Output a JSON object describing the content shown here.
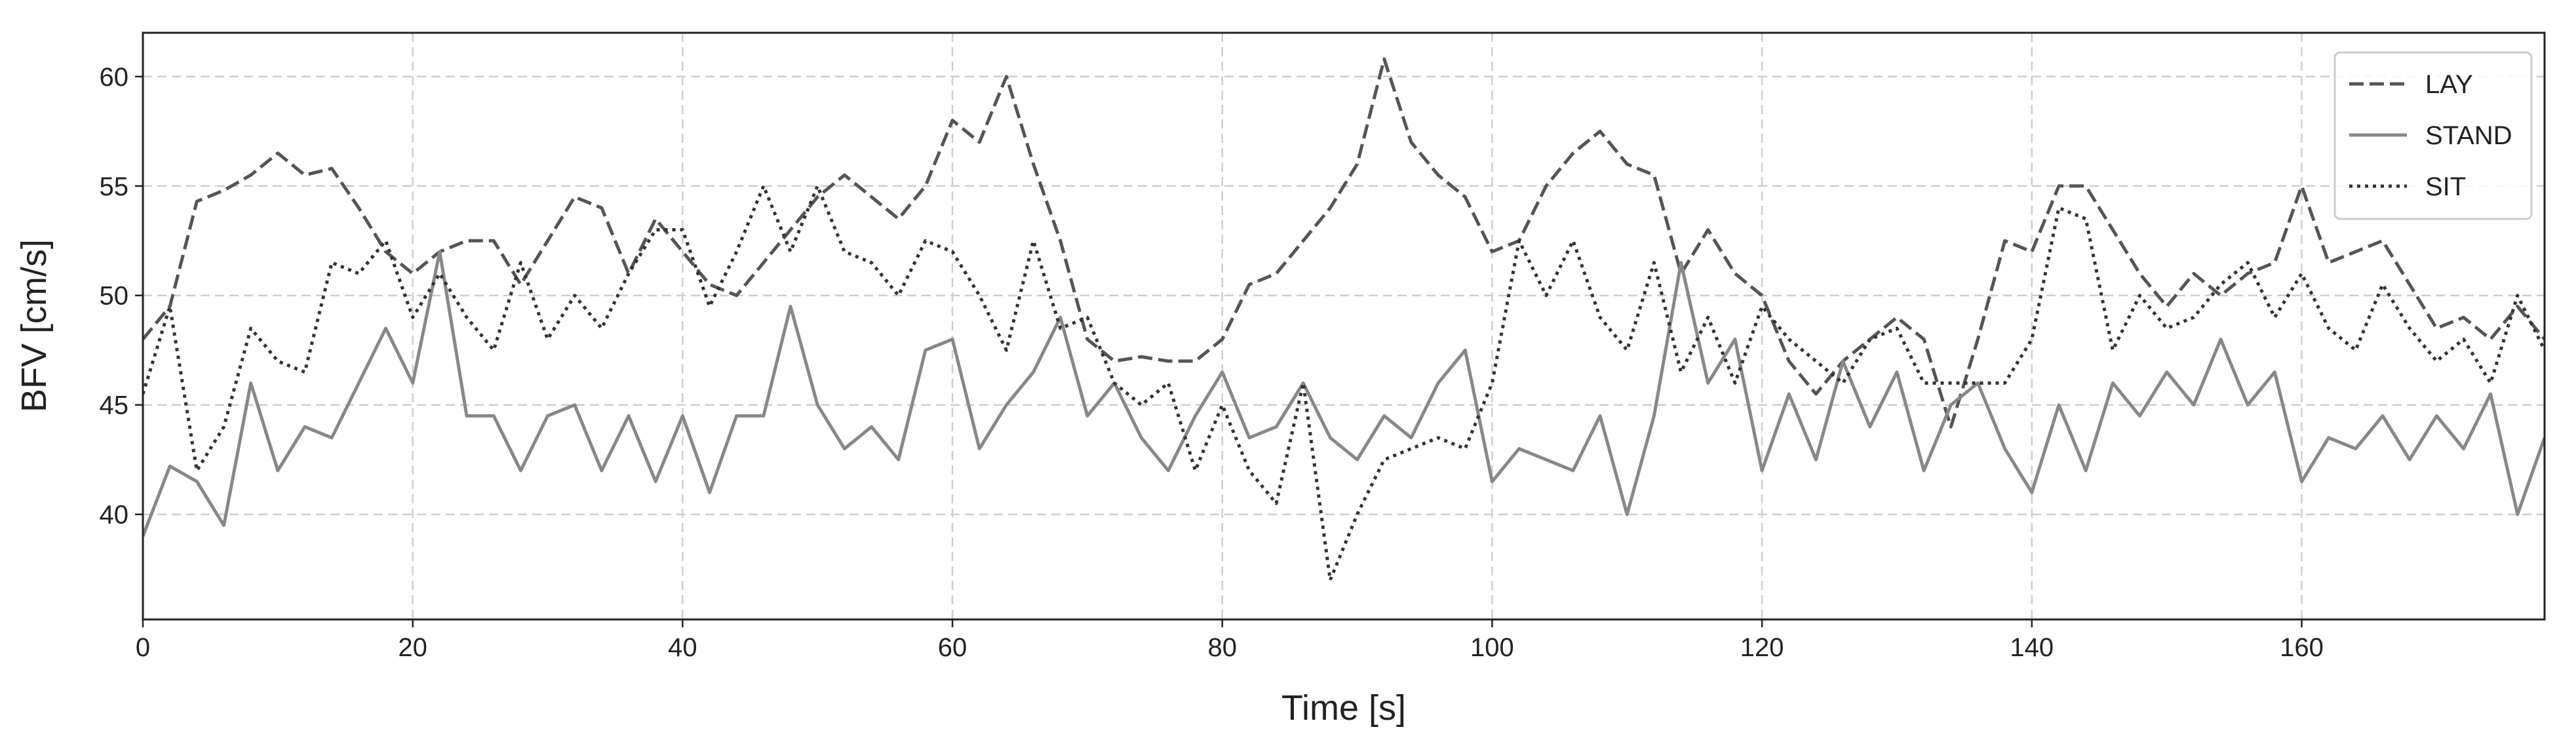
{
  "chart_data": {
    "type": "line",
    "x_label": "Time [s]",
    "y_label": "BFV [cm/s]",
    "x": [
      0,
      2,
      4,
      6,
      8,
      10,
      12,
      14,
      16,
      18,
      20,
      22,
      24,
      26,
      28,
      30,
      32,
      34,
      36,
      38,
      40,
      42,
      44,
      46,
      48,
      50,
      52,
      54,
      56,
      58,
      60,
      62,
      64,
      66,
      68,
      70,
      72,
      74,
      76,
      78,
      80,
      82,
      84,
      86,
      88,
      90,
      92,
      94,
      96,
      98,
      100,
      102,
      104,
      106,
      108,
      110,
      112,
      114,
      116,
      118,
      120,
      122,
      124,
      126,
      128,
      130,
      132,
      134,
      136,
      138,
      140,
      142,
      144,
      146,
      148,
      150,
      152,
      154,
      156,
      158,
      160,
      162,
      164,
      166,
      168,
      170,
      172,
      174,
      176,
      178
    ],
    "series": [
      {
        "name": "LAY",
        "color": "#555555",
        "linestyle": "dashed",
        "values": [
          48,
          49.5,
          54.3,
          54.8,
          55.5,
          56.5,
          55.5,
          55.8,
          54,
          52,
          51,
          52,
          52.5,
          52.5,
          50.5,
          52.5,
          54.5,
          54,
          51,
          53.5,
          52,
          50.5,
          50,
          51.5,
          53,
          54.5,
          55.5,
          54.5,
          53.5,
          55,
          58,
          57,
          60,
          56,
          52.5,
          48,
          47,
          47.2,
          47,
          47,
          48,
          50.5,
          51,
          52.5,
          54,
          56,
          60.8,
          57,
          55.5,
          54.5,
          52,
          52.5,
          55,
          56.5,
          57.5,
          56,
          55.5,
          51,
          53,
          51,
          50,
          47,
          45.5,
          47,
          48,
          49,
          48,
          44,
          48,
          52.5,
          52,
          55,
          55,
          53,
          51,
          49.5,
          51,
          50,
          51,
          51.5,
          55,
          51.5,
          52,
          52.5,
          50.5,
          48.5,
          49,
          48,
          49.5,
          48
        ]
      },
      {
        "name": "STAND",
        "color": "#888888",
        "linestyle": "solid",
        "values": [
          39,
          42.2,
          41.5,
          39.5,
          46,
          42,
          44,
          43.5,
          46,
          48.5,
          46,
          52,
          44.5,
          44.5,
          42,
          44.5,
          45,
          42,
          44.5,
          41.5,
          44.5,
          41,
          44.5,
          44.5,
          49.5,
          45,
          43,
          44,
          42.5,
          47.5,
          48,
          43,
          45,
          46.5,
          49,
          44.5,
          46,
          43.5,
          42,
          44.5,
          46.5,
          43.5,
          44,
          46,
          43.5,
          42.5,
          44.5,
          43.5,
          46,
          47.5,
          41.5,
          43,
          42.5,
          42,
          44.5,
          40,
          44.5,
          51.5,
          46,
          48,
          42,
          45.5,
          42.5,
          47,
          44,
          46.5,
          42,
          45,
          46,
          43,
          41,
          45,
          42,
          46,
          44.5,
          46.5,
          45,
          48,
          45,
          46.5,
          41.5,
          43.5,
          43,
          44.5,
          42.5,
          44.5,
          43,
          45.5,
          40,
          43.5
        ]
      },
      {
        "name": "SIT",
        "color": "#333333",
        "linestyle": "dotted",
        "values": [
          45.5,
          49.5,
          42,
          44,
          48.5,
          47,
          46.5,
          51.5,
          51,
          52.5,
          49,
          51,
          49,
          47.5,
          51.5,
          48,
          50,
          48.5,
          51,
          53,
          53,
          49.5,
          52,
          55,
          52,
          55,
          52,
          51.5,
          50,
          52.5,
          52,
          50,
          47.5,
          52.5,
          48.5,
          49,
          46,
          45,
          46,
          42,
          45,
          42,
          40.5,
          46,
          37,
          40,
          42.5,
          43,
          43.5,
          43,
          46,
          52.5,
          50,
          52.5,
          49,
          47.5,
          51.5,
          46.5,
          49,
          46,
          49.5,
          48,
          47,
          46,
          48,
          48.5,
          46,
          46,
          46,
          46,
          48,
          54,
          53.5,
          47.5,
          50,
          48.5,
          49,
          50.5,
          51.5,
          49,
          51,
          48.5,
          47.5,
          50.5,
          48.5,
          47,
          48,
          46,
          50,
          47.5
        ]
      }
    ],
    "xlim": [
      0,
      178
    ],
    "ylim": [
      35.2,
      62
    ],
    "xticks": [
      0,
      20,
      40,
      60,
      80,
      100,
      120,
      140,
      160
    ],
    "yticks": [
      40,
      45,
      50,
      55,
      60
    ],
    "grid": true,
    "legend": "upper right"
  }
}
